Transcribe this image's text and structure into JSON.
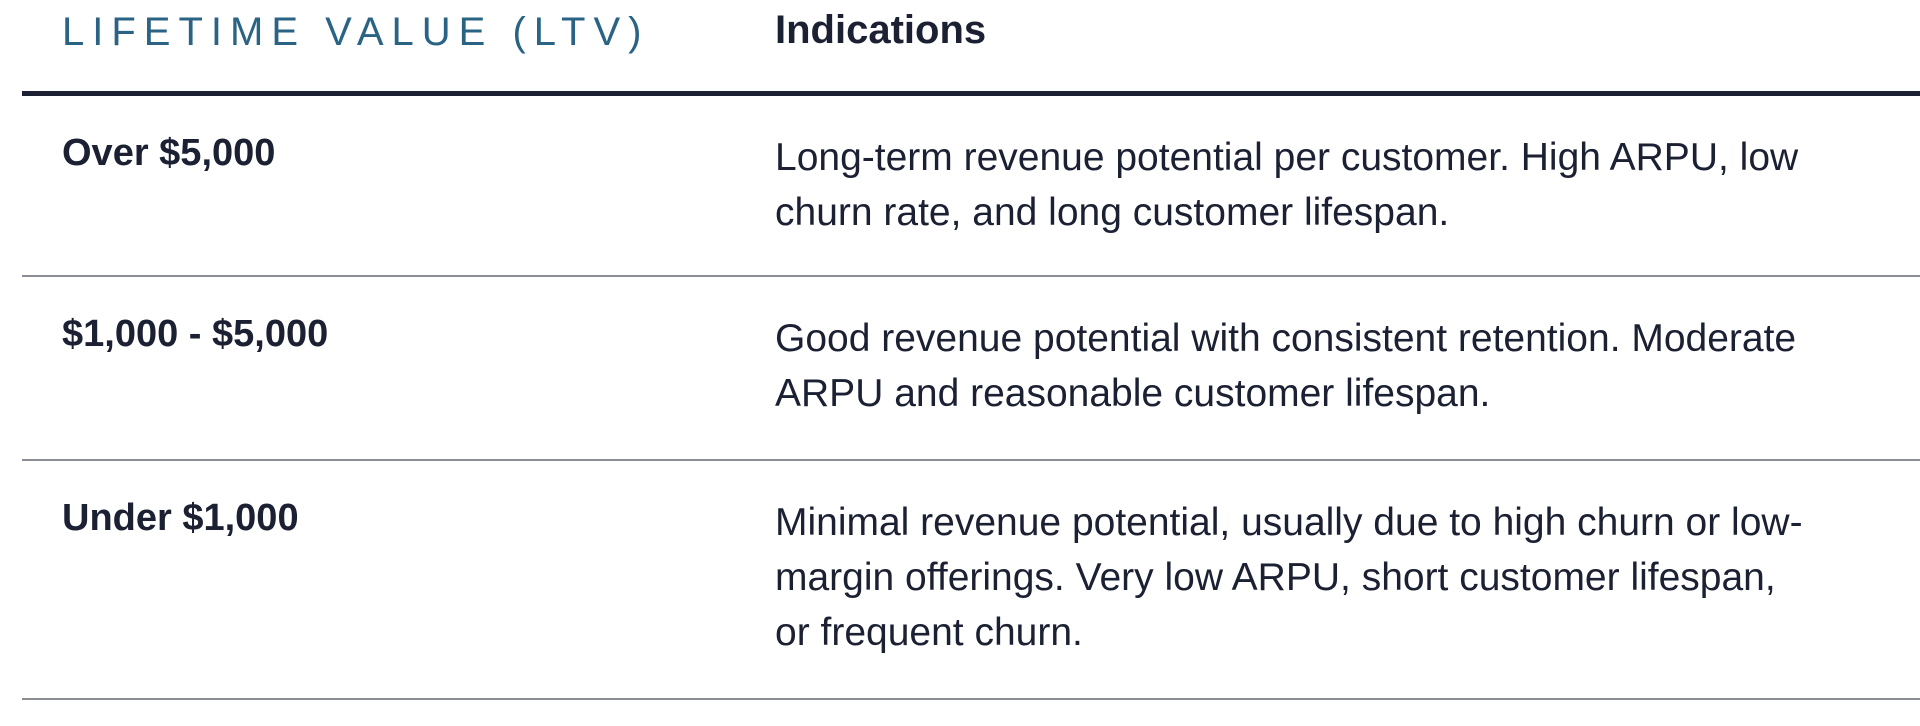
{
  "table": {
    "headers": {
      "value": "LIFETIME VALUE (LTV)",
      "indications": "Indications"
    },
    "rows": [
      {
        "value": "Over $5,000",
        "indications": "Long-term revenue potential per customer. High ARPU, low churn rate, and long customer lifespan."
      },
      {
        "value": "$1,000 - $5,000",
        "indications": "Good revenue potential with consistent retention. Moderate ARPU and reasonable customer lifespan."
      },
      {
        "value": "Under $1,000",
        "indications": "Minimal revenue potential, usually due to high churn or low-margin offerings. Very low ARPU, short customer lifespan, or frequent churn."
      }
    ]
  },
  "colors": {
    "header_accent": "#2a6384",
    "text": "#1b2033",
    "rule_dark": "#1b2033",
    "rule_light": "#8a8d94"
  }
}
